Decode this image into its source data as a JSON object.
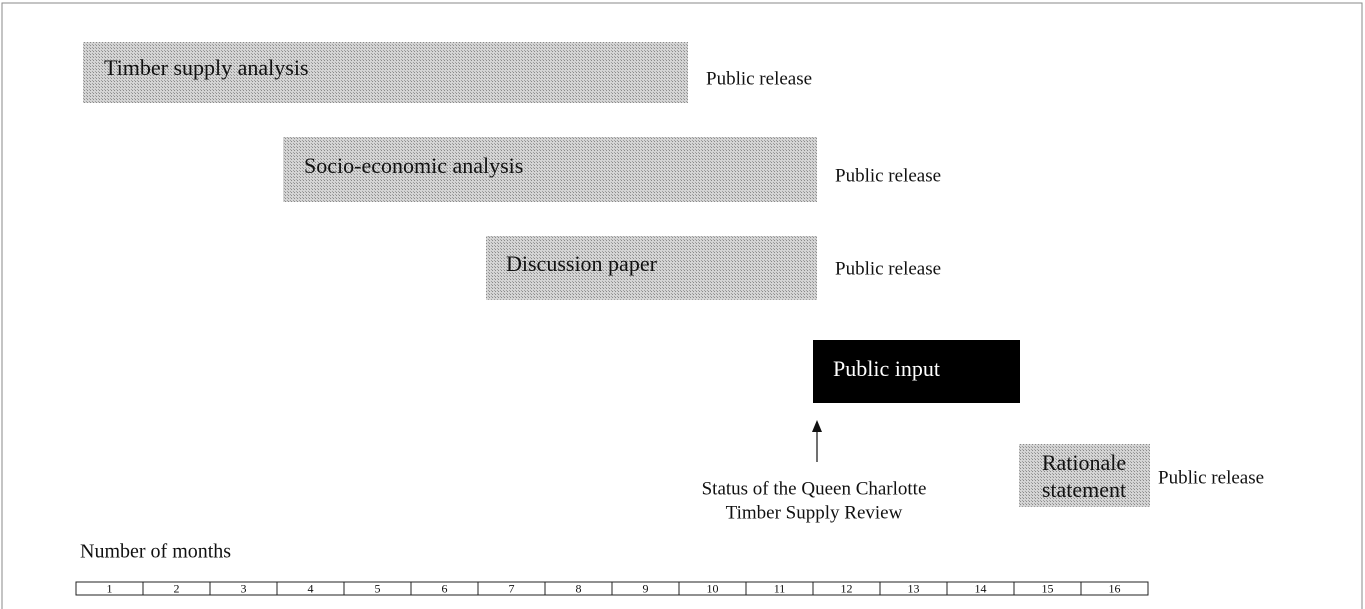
{
  "tasks": [
    {
      "label": "Timber supply analysis",
      "release": "Public release"
    },
    {
      "label": "Socio-economic analysis",
      "release": "Public release"
    },
    {
      "label": "Discussion paper",
      "release": "Public release"
    },
    {
      "label": "Public input"
    },
    {
      "label": [
        "Rationale",
        "statement"
      ],
      "release": "Public release"
    }
  ],
  "status": [
    "Status of the Queen Charlotte",
    "Timber Supply Review"
  ],
  "axis_label": "Number of months",
  "months": [
    1,
    2,
    3,
    4,
    5,
    6,
    7,
    8,
    9,
    10,
    11,
    12,
    13,
    14,
    15,
    16
  ]
}
